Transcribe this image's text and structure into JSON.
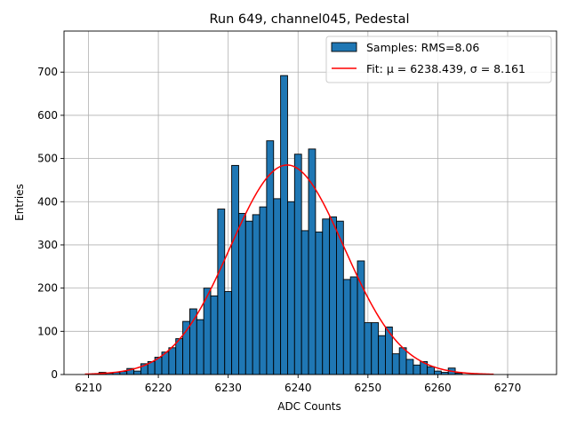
{
  "chart_data": {
    "type": "bar",
    "title": "Run 649, channel045, Pedestal",
    "xlabel": "ADC Counts",
    "ylabel": "Entries",
    "xlim": [
      6206.5,
      6277
    ],
    "ylim": [
      0,
      795
    ],
    "xticks": [
      6210,
      6220,
      6230,
      6240,
      6250,
      6260,
      6270
    ],
    "yticks": [
      0,
      100,
      200,
      300,
      400,
      500,
      600,
      700
    ],
    "grid": true,
    "legend_position": "top-right",
    "histogram": {
      "name": "Samples: RMS=8.06",
      "color": "#1f77b4",
      "bin_width": 1,
      "bins": [
        [
          6211,
          2
        ],
        [
          6212,
          5
        ],
        [
          6213,
          3
        ],
        [
          6214,
          5
        ],
        [
          6215,
          7
        ],
        [
          6216,
          14
        ],
        [
          6217,
          8
        ],
        [
          6218,
          25
        ],
        [
          6219,
          30
        ],
        [
          6220,
          40
        ],
        [
          6221,
          52
        ],
        [
          6222,
          62
        ],
        [
          6223,
          83
        ],
        [
          6224,
          123
        ],
        [
          6225,
          152
        ],
        [
          6226,
          127
        ],
        [
          6227,
          200
        ],
        [
          6228,
          182
        ],
        [
          6229,
          383
        ],
        [
          6230,
          192
        ],
        [
          6231,
          484
        ],
        [
          6232,
          373
        ],
        [
          6233,
          355
        ],
        [
          6234,
          370
        ],
        [
          6235,
          388
        ],
        [
          6236,
          541
        ],
        [
          6237,
          407
        ],
        [
          6238,
          692
        ],
        [
          6239,
          400
        ],
        [
          6240,
          510
        ],
        [
          6241,
          333
        ],
        [
          6242,
          522
        ],
        [
          6243,
          330
        ],
        [
          6244,
          360
        ],
        [
          6245,
          365
        ],
        [
          6246,
          355
        ],
        [
          6247,
          220
        ],
        [
          6248,
          226
        ],
        [
          6249,
          263
        ],
        [
          6250,
          120
        ],
        [
          6251,
          120
        ],
        [
          6252,
          90
        ],
        [
          6253,
          110
        ],
        [
          6254,
          48
        ],
        [
          6255,
          62
        ],
        [
          6256,
          35
        ],
        [
          6257,
          22
        ],
        [
          6258,
          30
        ],
        [
          6259,
          18
        ],
        [
          6260,
          8
        ],
        [
          6261,
          5
        ],
        [
          6262,
          15
        ],
        [
          6263,
          3
        ]
      ]
    },
    "fit": {
      "name": "Fit: μ = 6238.439, σ = 8.161",
      "color": "#ff0000",
      "type": "gaussian",
      "mu": 6238.439,
      "sigma": 8.161,
      "amplitude": 485,
      "x_range": [
        6209.5,
        6268
      ]
    }
  }
}
